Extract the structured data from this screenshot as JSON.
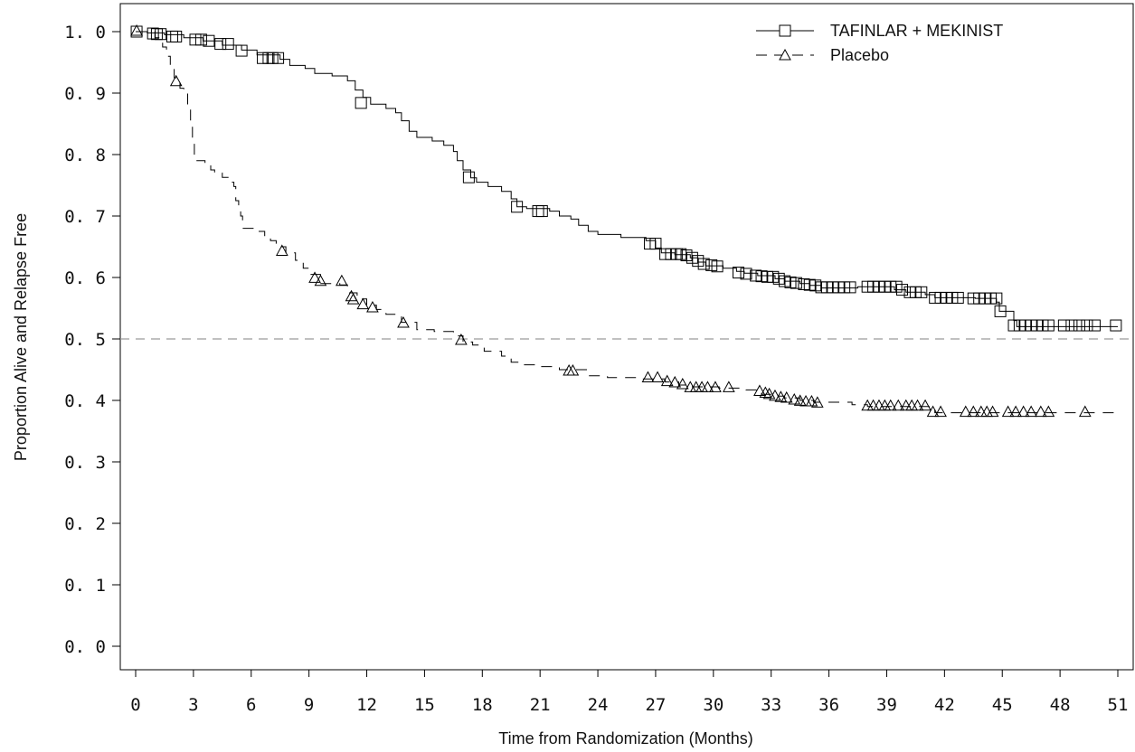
{
  "chart_data": {
    "type": "line",
    "title": "",
    "xlabel": "Time from Randomization (Months)",
    "ylabel": "Proportion Alive and Relapse Free",
    "xlim": [
      0,
      51
    ],
    "ylim": [
      0,
      1
    ],
    "x_ticks": [
      0,
      3,
      6,
      9,
      12,
      15,
      18,
      21,
      24,
      27,
      30,
      33,
      36,
      39,
      42,
      45,
      48,
      51
    ],
    "y_ticks": [
      0,
      0.1,
      0.2,
      0.3,
      0.4,
      0.5,
      0.6,
      0.7,
      0.8,
      0.9,
      1.0
    ],
    "x_tick_labels": [
      "0",
      "3",
      "6",
      "9",
      "12",
      "15",
      "18",
      "21",
      "24",
      "27",
      "30",
      "33",
      "36",
      "39",
      "42",
      "45",
      "48",
      "51"
    ],
    "y_tick_labels": [
      "0. 0",
      "0. 1",
      "0. 2",
      "0. 3",
      "0. 4",
      "0. 5",
      "0. 6",
      "0. 7",
      "0. 8",
      "0. 9",
      "1. 0"
    ],
    "reference_line": {
      "y": 0.5,
      "style": "dashed",
      "color": "#9a9a9a"
    },
    "legend_position": "top-right",
    "grid": false,
    "series": [
      {
        "name": "TAFINLAR + MEKINIST",
        "marker": "square",
        "dash": "solid",
        "color": "#000000",
        "steps": [
          [
            0,
            1.0
          ],
          [
            0.6,
            0.998
          ],
          [
            1.5,
            0.995
          ],
          [
            2.5,
            0.99
          ],
          [
            3.5,
            0.985
          ],
          [
            4.5,
            0.978
          ],
          [
            5.5,
            0.97
          ],
          [
            6.3,
            0.962
          ],
          [
            7.5,
            0.955
          ],
          [
            8,
            0.945
          ],
          [
            8.8,
            0.94
          ],
          [
            9.3,
            0.932
          ],
          [
            10.2,
            0.928
          ],
          [
            11,
            0.92
          ],
          [
            11.4,
            0.905
          ],
          [
            11.8,
            0.893
          ],
          [
            12.2,
            0.882
          ],
          [
            13,
            0.875
          ],
          [
            13.5,
            0.868
          ],
          [
            13.8,
            0.855
          ],
          [
            14.2,
            0.838
          ],
          [
            14.6,
            0.828
          ],
          [
            15.4,
            0.822
          ],
          [
            16,
            0.815
          ],
          [
            16.5,
            0.805
          ],
          [
            16.7,
            0.79
          ],
          [
            17,
            0.775
          ],
          [
            17.4,
            0.762
          ],
          [
            17.7,
            0.755
          ],
          [
            18.3,
            0.748
          ],
          [
            19,
            0.74
          ],
          [
            19.5,
            0.728
          ],
          [
            19.8,
            0.715
          ],
          [
            20.3,
            0.712
          ],
          [
            21.5,
            0.708
          ],
          [
            22,
            0.7
          ],
          [
            22.6,
            0.695
          ],
          [
            23,
            0.685
          ],
          [
            23.5,
            0.675
          ],
          [
            24,
            0.67
          ],
          [
            25.2,
            0.665
          ],
          [
            26.5,
            0.66
          ],
          [
            27,
            0.648
          ],
          [
            27.3,
            0.64
          ],
          [
            28,
            0.637
          ],
          [
            28.8,
            0.632
          ],
          [
            29.2,
            0.625
          ],
          [
            29.6,
            0.619
          ],
          [
            30.5,
            0.615
          ],
          [
            31.2,
            0.61
          ],
          [
            31.6,
            0.607
          ],
          [
            32.3,
            0.603
          ],
          [
            33.2,
            0.598
          ],
          [
            33.7,
            0.594
          ],
          [
            34.5,
            0.59
          ],
          [
            35,
            0.587
          ],
          [
            35.6,
            0.583
          ],
          [
            37.5,
            0.585
          ],
          [
            39.4,
            0.58
          ],
          [
            40,
            0.576
          ],
          [
            41,
            0.572
          ],
          [
            41.5,
            0.567
          ],
          [
            43.6,
            0.566
          ],
          [
            44.7,
            0.56
          ],
          [
            44.85,
            0.545
          ],
          [
            45.6,
            0.53
          ],
          [
            45.75,
            0.52
          ],
          [
            51,
            0.52
          ]
        ],
        "censors": [
          [
            0.05,
            1.0
          ],
          [
            0.9,
            0.997
          ],
          [
            1.1,
            0.996
          ],
          [
            1.3,
            0.996
          ],
          [
            1.9,
            0.992
          ],
          [
            2.1,
            0.992
          ],
          [
            3.1,
            0.987
          ],
          [
            3.4,
            0.987
          ],
          [
            3.8,
            0.985
          ],
          [
            4.4,
            0.98
          ],
          [
            4.8,
            0.98
          ],
          [
            5.5,
            0.969
          ],
          [
            6.6,
            0.957
          ],
          [
            6.9,
            0.957
          ],
          [
            7.1,
            0.957
          ],
          [
            7.4,
            0.957
          ],
          [
            11.7,
            0.884
          ],
          [
            17.3,
            0.763
          ],
          [
            19.8,
            0.715
          ],
          [
            20.9,
            0.708
          ],
          [
            21.1,
            0.708
          ],
          [
            26.7,
            0.655
          ],
          [
            27,
            0.655
          ],
          [
            27.5,
            0.638
          ],
          [
            27.8,
            0.638
          ],
          [
            28.1,
            0.638
          ],
          [
            28.3,
            0.638
          ],
          [
            28.6,
            0.636
          ],
          [
            28.9,
            0.632
          ],
          [
            29.2,
            0.627
          ],
          [
            29.5,
            0.622
          ],
          [
            29.9,
            0.62
          ],
          [
            30.2,
            0.618
          ],
          [
            31.3,
            0.608
          ],
          [
            31.7,
            0.606
          ],
          [
            32.2,
            0.603
          ],
          [
            32.5,
            0.602
          ],
          [
            32.8,
            0.601
          ],
          [
            33.1,
            0.601
          ],
          [
            33.4,
            0.598
          ],
          [
            33.7,
            0.594
          ],
          [
            34,
            0.592
          ],
          [
            34.3,
            0.591
          ],
          [
            34.7,
            0.589
          ],
          [
            35,
            0.588
          ],
          [
            35.3,
            0.587
          ],
          [
            35.6,
            0.584
          ],
          [
            35.9,
            0.584
          ],
          [
            36.2,
            0.584
          ],
          [
            36.5,
            0.584
          ],
          [
            36.8,
            0.584
          ],
          [
            37.1,
            0.584
          ],
          [
            38,
            0.585
          ],
          [
            38.3,
            0.585
          ],
          [
            38.6,
            0.585
          ],
          [
            38.9,
            0.585
          ],
          [
            39.2,
            0.585
          ],
          [
            39.5,
            0.585
          ],
          [
            39.8,
            0.58
          ],
          [
            40.2,
            0.576
          ],
          [
            40.5,
            0.576
          ],
          [
            40.8,
            0.576
          ],
          [
            41.5,
            0.567
          ],
          [
            41.8,
            0.567
          ],
          [
            42.1,
            0.567
          ],
          [
            42.4,
            0.567
          ],
          [
            42.7,
            0.567
          ],
          [
            43.5,
            0.566
          ],
          [
            43.8,
            0.566
          ],
          [
            44.1,
            0.566
          ],
          [
            44.4,
            0.566
          ],
          [
            44.7,
            0.566
          ],
          [
            44.9,
            0.545
          ],
          [
            45.6,
            0.522
          ],
          [
            45.9,
            0.522
          ],
          [
            46.2,
            0.522
          ],
          [
            46.5,
            0.522
          ],
          [
            46.8,
            0.522
          ],
          [
            47.1,
            0.522
          ],
          [
            47.4,
            0.522
          ],
          [
            48.2,
            0.522
          ],
          [
            48.6,
            0.522
          ],
          [
            49,
            0.522
          ],
          [
            49.4,
            0.522
          ],
          [
            49.8,
            0.522
          ],
          [
            50.9,
            0.522
          ]
        ]
      },
      {
        "name": "Placebo",
        "marker": "triangle",
        "dash": "dashed",
        "color": "#000000",
        "steps": [
          [
            0,
            1.0
          ],
          [
            1.0,
            0.99
          ],
          [
            1.4,
            0.975
          ],
          [
            1.6,
            0.96
          ],
          [
            1.8,
            0.945
          ],
          [
            2.0,
            0.925
          ],
          [
            2.3,
            0.908
          ],
          [
            2.5,
            0.9
          ],
          [
            2.7,
            0.875
          ],
          [
            2.85,
            0.855
          ],
          [
            2.95,
            0.82
          ],
          [
            3.05,
            0.79
          ],
          [
            3.6,
            0.785
          ],
          [
            3.9,
            0.775
          ],
          [
            4.1,
            0.77
          ],
          [
            4.5,
            0.763
          ],
          [
            4.8,
            0.755
          ],
          [
            5.1,
            0.748
          ],
          [
            5.2,
            0.725
          ],
          [
            5.35,
            0.715
          ],
          [
            5.45,
            0.7
          ],
          [
            5.55,
            0.68
          ],
          [
            6.2,
            0.675
          ],
          [
            6.7,
            0.668
          ],
          [
            7,
            0.66
          ],
          [
            7.3,
            0.65
          ],
          [
            7.8,
            0.64
          ],
          [
            8.3,
            0.628
          ],
          [
            8.7,
            0.615
          ],
          [
            9.1,
            0.605
          ],
          [
            9.6,
            0.59
          ],
          [
            10.6,
            0.588
          ],
          [
            11,
            0.575
          ],
          [
            11.5,
            0.565
          ],
          [
            12,
            0.555
          ],
          [
            12.5,
            0.548
          ],
          [
            13,
            0.54
          ],
          [
            13.8,
            0.527
          ],
          [
            14.6,
            0.515
          ],
          [
            15.5,
            0.512
          ],
          [
            16.5,
            0.505
          ],
          [
            17,
            0.495
          ],
          [
            17.5,
            0.49
          ],
          [
            18.1,
            0.48
          ],
          [
            19,
            0.472
          ],
          [
            19.5,
            0.462
          ],
          [
            20,
            0.458
          ],
          [
            21,
            0.455
          ],
          [
            22,
            0.45
          ],
          [
            23.5,
            0.44
          ],
          [
            24.5,
            0.437
          ],
          [
            26.3,
            0.435
          ],
          [
            27.5,
            0.43
          ],
          [
            28.2,
            0.425
          ],
          [
            28.8,
            0.422
          ],
          [
            30.3,
            0.42
          ],
          [
            31.7,
            0.417
          ],
          [
            32.5,
            0.41
          ],
          [
            33.1,
            0.407
          ],
          [
            33.7,
            0.404
          ],
          [
            34.5,
            0.4
          ],
          [
            35.2,
            0.397
          ],
          [
            37.2,
            0.393
          ],
          [
            38,
            0.39
          ],
          [
            41.2,
            0.385
          ],
          [
            41.5,
            0.38
          ],
          [
            51,
            0.38
          ]
        ],
        "censors": [
          [
            0.05,
            1.0
          ],
          [
            2.1,
            0.918
          ],
          [
            7.6,
            0.642
          ],
          [
            9.3,
            0.598
          ],
          [
            9.6,
            0.593
          ],
          [
            10.7,
            0.593
          ],
          [
            11.2,
            0.568
          ],
          [
            11.3,
            0.563
          ],
          [
            11.8,
            0.555
          ],
          [
            12.3,
            0.55
          ],
          [
            13.9,
            0.525
          ],
          [
            16.9,
            0.497
          ],
          [
            22.5,
            0.447
          ],
          [
            22.7,
            0.447
          ],
          [
            26.6,
            0.436
          ],
          [
            27.1,
            0.436
          ],
          [
            27.6,
            0.43
          ],
          [
            28,
            0.428
          ],
          [
            28.4,
            0.425
          ],
          [
            28.8,
            0.42
          ],
          [
            29.1,
            0.42
          ],
          [
            29.4,
            0.42
          ],
          [
            29.7,
            0.42
          ],
          [
            30.1,
            0.42
          ],
          [
            30.8,
            0.42
          ],
          [
            32.4,
            0.414
          ],
          [
            32.7,
            0.411
          ],
          [
            32.9,
            0.409
          ],
          [
            33.2,
            0.406
          ],
          [
            33.5,
            0.404
          ],
          [
            33.8,
            0.403
          ],
          [
            34.2,
            0.4
          ],
          [
            34.5,
            0.398
          ],
          [
            34.8,
            0.397
          ],
          [
            35.1,
            0.397
          ],
          [
            35.4,
            0.395
          ],
          [
            38,
            0.39
          ],
          [
            38.3,
            0.39
          ],
          [
            38.6,
            0.39
          ],
          [
            38.9,
            0.39
          ],
          [
            39.2,
            0.39
          ],
          [
            39.6,
            0.39
          ],
          [
            40,
            0.39
          ],
          [
            40.3,
            0.39
          ],
          [
            40.6,
            0.39
          ],
          [
            41,
            0.39
          ],
          [
            41.4,
            0.38
          ],
          [
            41.8,
            0.38
          ],
          [
            43.1,
            0.38
          ],
          [
            43.5,
            0.38
          ],
          [
            43.9,
            0.38
          ],
          [
            44.2,
            0.38
          ],
          [
            44.5,
            0.38
          ],
          [
            45.3,
            0.38
          ],
          [
            45.7,
            0.38
          ],
          [
            46.1,
            0.38
          ],
          [
            46.5,
            0.38
          ],
          [
            47,
            0.38
          ],
          [
            47.4,
            0.38
          ],
          [
            49.3,
            0.38
          ]
        ]
      }
    ]
  }
}
